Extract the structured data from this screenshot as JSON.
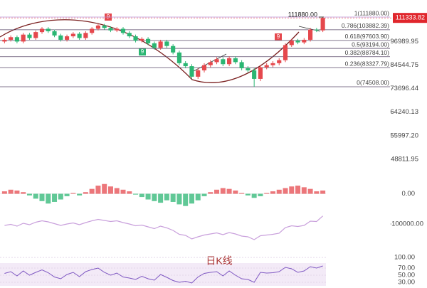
{
  "chart_data": {
    "type": "candlestick",
    "log_scale": true,
    "ylim": [
      47200,
      123600
    ],
    "yticks": [
      96989.95,
      84544.75,
      73696.44,
      64240.13,
      {
        "value": 55997.2,
        "label": "55997.20"
      },
      48811.95
    ],
    "current_price": 111333.82,
    "high_label": {
      "value": 111880,
      "label": "111880.00"
    },
    "fib_levels": [
      {
        "value": 111880,
        "label": "1(111880.00)"
      },
      {
        "value": 103882.39,
        "label": "0.786(103882.39)"
      },
      {
        "value": 97603.9,
        "label": "0.618(97603.90)"
      },
      {
        "value": 93194,
        "label": "0.5(93194.00)"
      },
      {
        "value": 88784.1,
        "label": "0.382(88784.10)"
      },
      {
        "value": 83327.79,
        "label": "0.236(83327.79)"
      },
      {
        "value": 74508,
        "label": "0(74508.00)"
      }
    ],
    "td_markers": [
      "9",
      "9",
      "9"
    ],
    "watermark": "日K线",
    "up_color": "#e5484d",
    "down_color": "#2bb673",
    "open": [
      97000,
      98000,
      99500,
      97000,
      101000,
      99000,
      102500,
      104500,
      103000,
      100500,
      98000,
      100000,
      101500,
      99000,
      102000,
      104500,
      106500,
      105000,
      103500,
      104500,
      102000,
      100000,
      97500,
      98500,
      96000,
      93500,
      97000,
      94500,
      91000,
      85500,
      84000,
      79000,
      82000,
      84500,
      86000,
      87500,
      85000,
      88000,
      86000,
      83000,
      82000,
      78000,
      83500,
      84500,
      85500,
      87000,
      95000,
      97500,
      96500,
      98000,
      104000,
      103500
    ],
    "high": [
      99000,
      100500,
      100500,
      102000,
      102000,
      103500,
      105500,
      105500,
      104000,
      101500,
      101000,
      102500,
      102500,
      103000,
      105500,
      107500,
      107500,
      106000,
      105500,
      105500,
      103000,
      101000,
      99500,
      99500,
      97000,
      98000,
      98000,
      95500,
      92000,
      86500,
      85000,
      83000,
      85500,
      87000,
      88500,
      88500,
      89000,
      89000,
      87000,
      84000,
      83000,
      84500,
      85500,
      86500,
      88000,
      96000,
      98500,
      98500,
      99000,
      105000,
      105000,
      111880
    ],
    "low": [
      96000,
      97000,
      96000,
      96000,
      98000,
      98000,
      101500,
      102000,
      99500,
      97000,
      97000,
      99000,
      98000,
      98000,
      101000,
      103500,
      104000,
      102500,
      102500,
      101000,
      99000,
      96500,
      96500,
      95000,
      92500,
      92500,
      93500,
      90000,
      84500,
      83000,
      78000,
      78000,
      81000,
      83500,
      85000,
      84000,
      84000,
      85000,
      82000,
      81000,
      74508,
      77000,
      82500,
      83500,
      84500,
      86000,
      94000,
      95500,
      95500,
      97000,
      102500,
      102500
    ],
    "close": [
      98000,
      99500,
      97000,
      101000,
      99000,
      102500,
      104500,
      103000,
      100500,
      98000,
      100000,
      101500,
      99000,
      102000,
      104500,
      106500,
      105000,
      103500,
      104500,
      102000,
      100000,
      97500,
      98500,
      96000,
      93500,
      97000,
      94500,
      91000,
      85500,
      84000,
      79000,
      82000,
      84500,
      86000,
      87500,
      85000,
      88000,
      86000,
      83000,
      82000,
      78000,
      83500,
      84500,
      85500,
      87000,
      95000,
      97500,
      96500,
      98000,
      104000,
      103500,
      111333.82
    ],
    "macd": {
      "ylim": [
        -2400,
        2400
      ],
      "yticks": [
        {
          "value": 0,
          "label": "0.00"
        }
      ],
      "values": [
        300,
        500,
        400,
        200,
        -200,
        -600,
        -900,
        -1200,
        -1000,
        -700,
        -300,
        100,
        -200,
        200,
        600,
        1000,
        1200,
        900,
        700,
        500,
        300,
        -100,
        -400,
        -700,
        -900,
        -1100,
        -800,
        -1000,
        -1300,
        -1500,
        -1200,
        -800,
        -300,
        200,
        500,
        700,
        600,
        400,
        100,
        -200,
        -500,
        -300,
        100,
        300,
        500,
        700,
        900,
        1000,
        800,
        600,
        300,
        400
      ]
    },
    "ma_pane": {
      "ylim": [
        80000,
        115000
      ],
      "yticks": [
        {
          "value": 100000,
          "label": "100000.00"
        }
      ],
      "color": "#c9a0dc"
    },
    "rsi": {
      "ylim": [
        20,
        110
      ],
      "color": "#7e57c2",
      "yticks": [
        {
          "value": 100,
          "label": "100.00"
        },
        {
          "value": 70,
          "label": "70.00"
        },
        {
          "value": 50,
          "label": "50.00"
        },
        {
          "value": 30,
          "label": "30.00"
        }
      ],
      "values": [
        55,
        60,
        48,
        62,
        50,
        58,
        65,
        57,
        45,
        40,
        52,
        58,
        46,
        60,
        66,
        70,
        58,
        50,
        56,
        45,
        42,
        38,
        47,
        40,
        36,
        52,
        44,
        35,
        30,
        33,
        28,
        45,
        55,
        58,
        60,
        48,
        62,
        50,
        40,
        38,
        30,
        58,
        56,
        57,
        60,
        72,
        68,
        58,
        62,
        74,
        70,
        76
      ]
    }
  }
}
